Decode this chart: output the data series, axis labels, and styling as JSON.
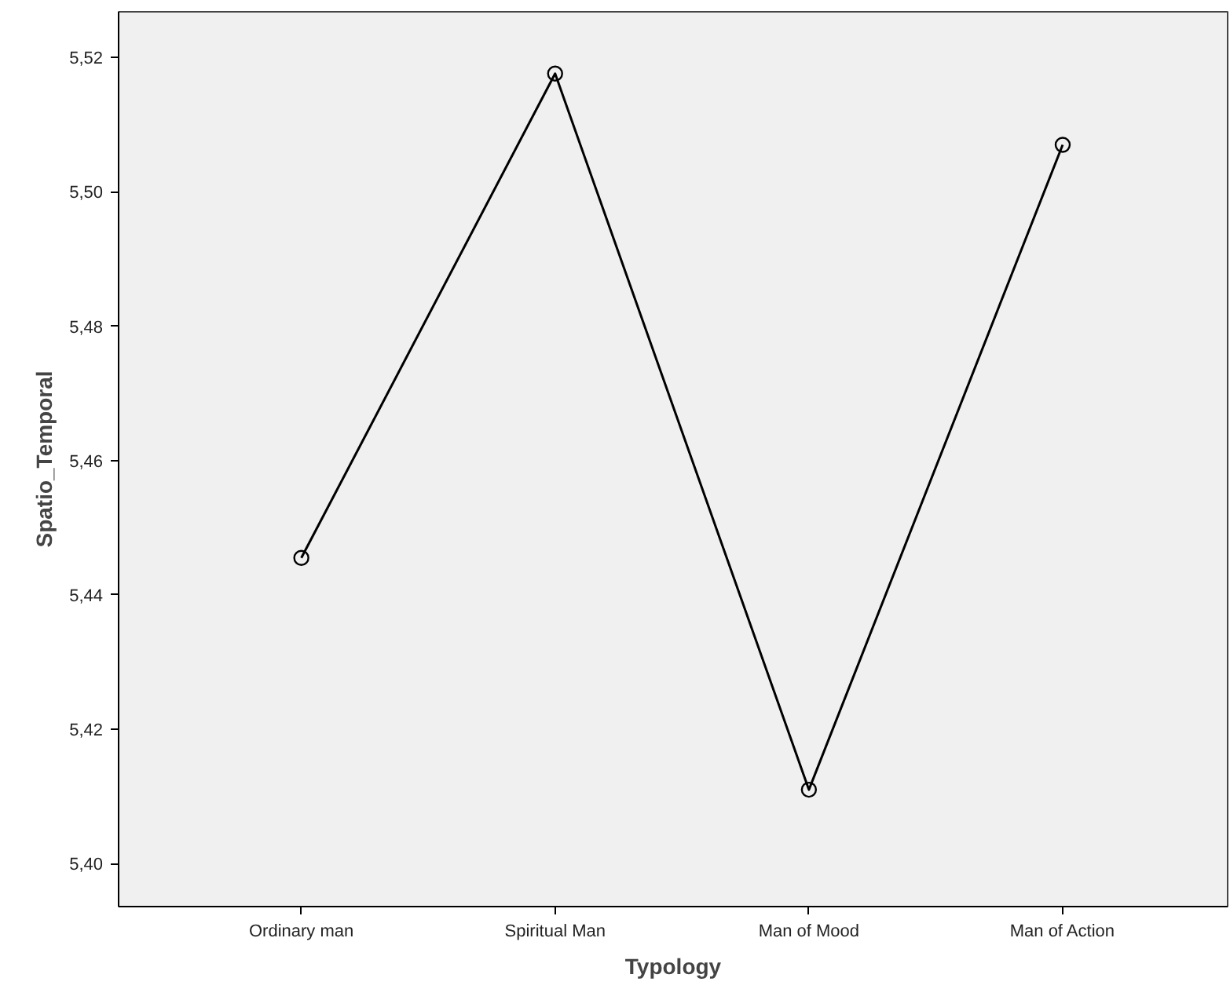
{
  "chart_data": {
    "type": "line",
    "xlabel": "Typology",
    "ylabel": "Spatio_Temporal",
    "categories": [
      "Ordinary man",
      "Spiritual Man",
      "Man of Mood",
      "Man of Action"
    ],
    "values": [
      5.4455,
      5.5176,
      5.411,
      5.507
    ],
    "color": "#000000",
    "marker": "circle",
    "line_style": "solid",
    "grid": false,
    "ylim": [
      5.3936,
      5.5268
    ],
    "yticks": [
      {
        "value": 5.4,
        "label": "5,40"
      },
      {
        "value": 5.42,
        "label": "5,42"
      },
      {
        "value": 5.44,
        "label": "5,44"
      },
      {
        "value": 5.46,
        "label": "5,46"
      },
      {
        "value": 5.48,
        "label": "5,48"
      },
      {
        "value": 5.5,
        "label": "5,50"
      },
      {
        "value": 5.52,
        "label": "5,52"
      }
    ]
  }
}
